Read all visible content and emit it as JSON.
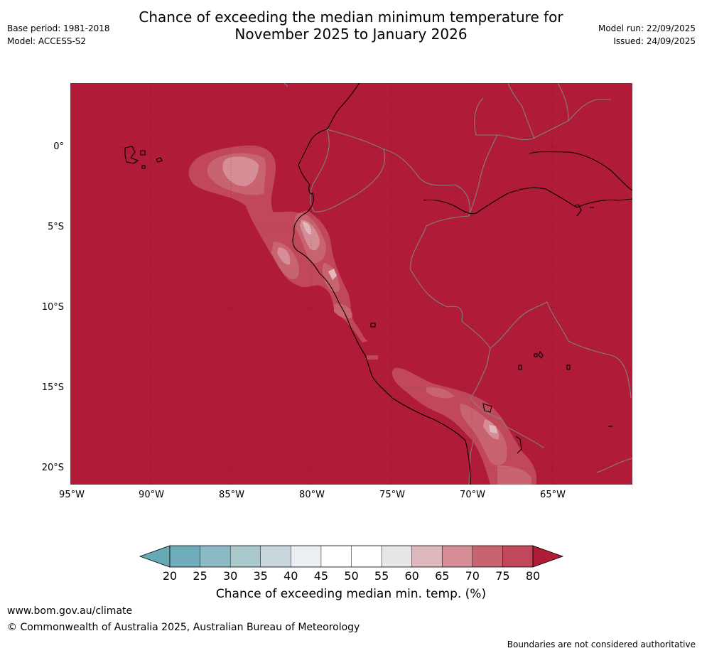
{
  "header": {
    "title_line1": "Chance of exceeding the median minimum temperature for",
    "title_line2": "November 2025 to January 2026",
    "base_period": "Base period: 1981-2018",
    "model": "Model: ACCESS-S2",
    "model_run": "Model run: 22/09/2025",
    "issued": "Issued: 24/09/2025"
  },
  "map": {
    "x_ticks": [
      "95°W",
      "90°W",
      "85°W",
      "80°W",
      "75°W",
      "70°W",
      "65°W"
    ],
    "y_ticks": [
      "0°",
      "5°S",
      "10°S",
      "15°S",
      "20°S"
    ],
    "colors": {
      "c75_80": "#b01c38",
      "c70_75": "#c0485a",
      "c65_70": "#c8646f",
      "c60_65": "#d58e95",
      "c55_60": "#e1b8bc",
      "land_border": "#808080",
      "coast": "#000000"
    }
  },
  "colorbar": {
    "ticks": [
      "20",
      "25",
      "30",
      "35",
      "40",
      "45",
      "50",
      "55",
      "60",
      "65",
      "70",
      "75",
      "80"
    ],
    "colors": [
      "#66aab5",
      "#6eadb9",
      "#8cbac4",
      "#a9c8cc",
      "#c9d7dc",
      "#ebeff1",
      "#ffffff",
      "#ffffff",
      "#e6e6e6",
      "#dfb8bd",
      "#d58e95",
      "#c8646f",
      "#c0485a",
      "#b01c38"
    ],
    "label": "Chance of exceeding median min. temp. (%)"
  },
  "footer": {
    "website": "www.bom.gov.au/climate",
    "copyright": "© Commonwealth of Australia 2025, Australian Bureau of Meteorology",
    "disclaimer": "Boundaries are not considered authoritative"
  }
}
